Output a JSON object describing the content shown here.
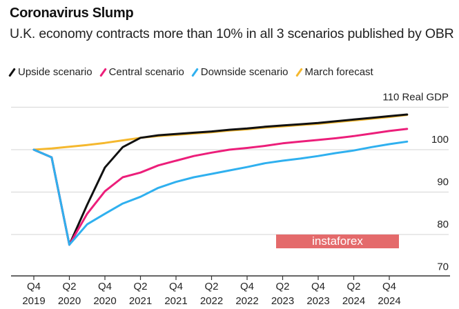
{
  "chart_data": {
    "type": "line",
    "title": "Coronavirus Slump",
    "subtitle": "U.K. economy contracts more than 10% in all 3 scenarios published by OBR",
    "ylabel": "Real GDP",
    "ylim": [
      70,
      110
    ],
    "yticks": [
      110,
      100,
      90,
      80,
      70
    ],
    "grid": true,
    "legend_position": "top",
    "x": [
      "Q4 2019",
      "Q1 2020",
      "Q2 2020",
      "Q3 2020",
      "Q4 2020",
      "Q1 2021",
      "Q2 2021",
      "Q3 2021",
      "Q4 2021",
      "Q1 2022",
      "Q2 2022",
      "Q3 2022",
      "Q4 2022",
      "Q1 2023",
      "Q2 2023",
      "Q3 2023",
      "Q4 2023",
      "Q1 2024",
      "Q2 2024",
      "Q3 2024",
      "Q4 2024",
      "Q1 2025"
    ],
    "xticks": [
      {
        "q": "Q4",
        "y": "2019"
      },
      {
        "q": "Q2",
        "y": "2020"
      },
      {
        "q": "Q4",
        "y": "2020"
      },
      {
        "q": "Q2",
        "y": "2021"
      },
      {
        "q": "Q4",
        "y": "2021"
      },
      {
        "q": "Q2",
        "y": "2022"
      },
      {
        "q": "Q4",
        "y": "2022"
      },
      {
        "q": "Q2",
        "y": "2023"
      },
      {
        "q": "Q4",
        "y": "2023"
      },
      {
        "q": "Q2",
        "y": "2024"
      },
      {
        "q": "Q4",
        "y": "2024"
      }
    ],
    "series": [
      {
        "name": "March forecast",
        "color": "#f5b82e",
        "values": [
          100,
          100.3,
          100.7,
          101.1,
          101.6,
          102.2,
          102.8,
          103.2,
          103.5,
          103.8,
          104.1,
          104.5,
          104.8,
          105.2,
          105.5,
          105.8,
          106.1,
          106.5,
          106.9,
          107.3,
          107.7,
          108.2
        ]
      },
      {
        "name": "Upside scenario",
        "color": "#111111",
        "values": [
          100,
          98.2,
          77.6,
          87.0,
          95.8,
          100.6,
          102.8,
          103.4,
          103.7,
          104.0,
          104.3,
          104.7,
          105.0,
          105.4,
          105.7,
          106.0,
          106.3,
          106.7,
          107.1,
          107.5,
          107.9,
          108.3
        ]
      },
      {
        "name": "Central scenario",
        "color": "#ec1e7a",
        "values": [
          100,
          98.2,
          77.6,
          84.9,
          90.2,
          93.5,
          94.6,
          96.3,
          97.4,
          98.5,
          99.3,
          100.0,
          100.4,
          100.9,
          101.5,
          101.9,
          102.3,
          102.7,
          103.2,
          103.8,
          104.4,
          104.9
        ]
      },
      {
        "name": "Downside scenario",
        "color": "#2fb0ef",
        "values": [
          100,
          98.2,
          77.6,
          82.4,
          84.9,
          87.3,
          88.9,
          91.0,
          92.4,
          93.5,
          94.3,
          95.1,
          95.9,
          96.8,
          97.4,
          97.9,
          98.5,
          99.2,
          99.8,
          100.6,
          101.3,
          101.9
        ]
      }
    ]
  },
  "legend": [
    {
      "label": "Upside scenario",
      "color": "#111111"
    },
    {
      "label": "Central scenario",
      "color": "#ec1e7a"
    },
    {
      "label": "Downside scenario",
      "color": "#2fb0ef"
    },
    {
      "label": "March forecast",
      "color": "#f5b82e"
    }
  ],
  "watermark": "instaforex"
}
